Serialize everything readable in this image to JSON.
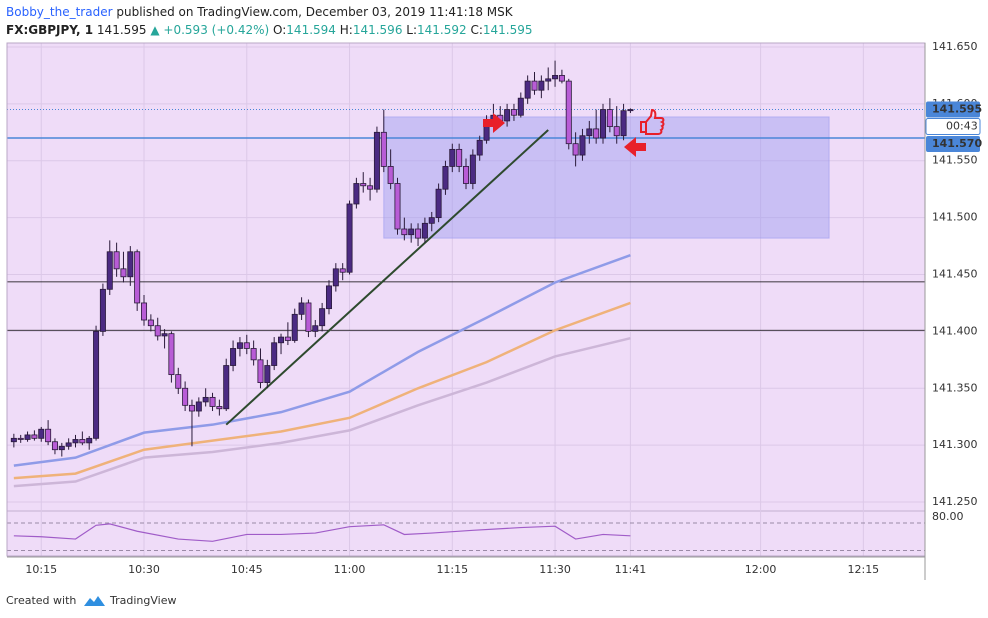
{
  "header": {
    "author": "Bobby_the_trader",
    "published": "published on TradingView.com, December 03, 2019 11:41:18 MSK",
    "symbol": "FX:GBPJPY, 1",
    "last": "141.595",
    "change": "▲ +0.593 (+0.42%)",
    "open_label": "O:",
    "open": "141.594",
    "high_label": "H:",
    "high": "141.596",
    "low_label": "L:",
    "low": "141.592",
    "close_label": "C:",
    "close": "141.595"
  },
  "footer": {
    "text": "Created with",
    "brand": "TradingView"
  },
  "chart_data": {
    "type": "candlestick",
    "xlim": [
      "10:10",
      "12:24"
    ],
    "xticks": [
      "10:15",
      "10:30",
      "10:45",
      "11:00",
      "11:15",
      "11:30",
      "11:41",
      "12:00",
      "12:15"
    ],
    "ylim": [
      141.243,
      141.6535
    ],
    "yticks": [
      {
        "value": 141.25,
        "label": "141.250"
      },
      {
        "value": 141.3,
        "label": "141.300"
      },
      {
        "value": 141.35,
        "label": "141.350"
      },
      {
        "value": 141.4,
        "label": "141.400"
      },
      {
        "value": 141.45,
        "label": "141.450"
      },
      {
        "value": 141.5,
        "label": "141.500"
      },
      {
        "value": 141.55,
        "label": "141.550"
      },
      {
        "value": 141.6,
        "label": "141.600"
      },
      {
        "value": 141.65,
        "label": "141.650"
      }
    ],
    "grid": true,
    "up_color": "#4b2a82",
    "down_color": "#b85cd6",
    "x": [
      "10:11",
      "10:12",
      "10:13",
      "10:14",
      "10:15",
      "10:16",
      "10:17",
      "10:18",
      "10:19",
      "10:20",
      "10:21",
      "10:22",
      "10:23",
      "10:24",
      "10:25",
      "10:26",
      "10:27",
      "10:28",
      "10:29",
      "10:30",
      "10:31",
      "10:32",
      "10:33",
      "10:34",
      "10:35",
      "10:36",
      "10:37",
      "10:38",
      "10:39",
      "10:40",
      "10:41",
      "10:42",
      "10:43",
      "10:44",
      "10:45",
      "10:46",
      "10:47",
      "10:48",
      "10:49",
      "10:50",
      "10:51",
      "10:52",
      "10:53",
      "10:54",
      "10:55",
      "10:56",
      "10:57",
      "10:58",
      "10:59",
      "11:00",
      "11:01",
      "11:02",
      "11:03",
      "11:04",
      "11:05",
      "11:06",
      "11:07",
      "11:08",
      "11:09",
      "11:10",
      "11:11",
      "11:12",
      "11:13",
      "11:14",
      "11:15",
      "11:16",
      "11:17",
      "11:18",
      "11:19",
      "11:20",
      "11:21",
      "11:22",
      "11:23",
      "11:24",
      "11:25",
      "11:26",
      "11:27",
      "11:28",
      "11:29",
      "11:30",
      "11:31",
      "11:32",
      "11:33",
      "11:34",
      "11:35",
      "11:36",
      "11:37",
      "11:38",
      "11:39",
      "11:40",
      "11:41"
    ],
    "open": [
      141.303,
      141.306,
      141.305,
      141.309,
      141.306,
      141.314,
      141.303,
      141.296,
      141.299,
      141.302,
      141.305,
      141.302,
      141.306,
      141.4,
      141.437,
      141.47,
      141.455,
      141.448,
      141.47,
      141.425,
      141.41,
      141.405,
      141.396,
      141.398,
      141.362,
      141.35,
      141.335,
      141.33,
      141.338,
      141.342,
      141.334,
      141.332,
      141.37,
      141.385,
      141.39,
      141.385,
      141.375,
      141.355,
      141.37,
      141.39,
      141.395,
      141.392,
      141.415,
      141.425,
      141.4,
      141.405,
      141.42,
      141.44,
      141.455,
      141.452,
      141.512,
      141.53,
      141.528,
      141.525,
      141.575,
      141.545,
      141.53,
      141.49,
      141.485,
      141.49,
      141.482,
      141.495,
      141.5,
      141.525,
      141.545,
      141.56,
      141.545,
      141.53,
      141.555,
      141.568,
      141.585,
      141.59,
      141.585,
      141.595,
      141.59,
      141.605,
      141.62,
      141.612,
      141.62,
      141.622,
      141.625,
      141.62,
      141.565,
      141.555,
      141.572,
      141.578,
      141.57,
      141.595,
      141.58,
      141.572,
      141.594
    ],
    "high": [
      141.31,
      141.309,
      141.312,
      141.313,
      141.316,
      141.322,
      141.306,
      141.302,
      141.306,
      141.309,
      141.312,
      141.308,
      141.405,
      141.442,
      141.48,
      141.478,
      141.47,
      141.475,
      141.472,
      141.432,
      141.415,
      141.412,
      141.402,
      141.4,
      141.368,
      141.356,
      141.34,
      141.342,
      141.35,
      141.346,
      141.34,
      141.376,
      141.392,
      141.395,
      141.397,
      141.392,
      141.385,
      141.375,
      141.395,
      141.398,
      141.408,
      141.42,
      141.43,
      141.428,
      141.41,
      141.425,
      141.445,
      141.46,
      141.46,
      141.515,
      141.535,
      141.54,
      141.535,
      141.58,
      141.595,
      141.56,
      141.535,
      141.5,
      141.495,
      141.495,
      141.5,
      141.505,
      141.53,
      141.55,
      141.565,
      141.565,
      141.552,
      141.56,
      141.572,
      141.59,
      141.6,
      141.598,
      141.6,
      141.6,
      141.61,
      141.625,
      141.628,
      141.625,
      141.632,
      141.638,
      141.63,
      141.622,
      141.575,
      141.578,
      141.585,
      141.595,
      141.6,
      141.605,
      141.598,
      141.6,
      141.596
    ],
    "low": [
      141.298,
      141.302,
      141.303,
      141.304,
      141.303,
      141.3,
      141.292,
      141.29,
      141.296,
      141.298,
      141.3,
      141.296,
      141.304,
      141.396,
      141.432,
      141.448,
      141.443,
      141.44,
      141.418,
      141.405,
      141.4,
      141.392,
      141.385,
      141.355,
      141.345,
      141.33,
      141.299,
      141.325,
      141.334,
      141.33,
      141.326,
      141.33,
      141.365,
      141.378,
      141.38,
      141.37,
      141.35,
      141.35,
      141.366,
      141.38,
      141.388,
      141.39,
      141.41,
      141.395,
      141.395,
      141.4,
      141.415,
      141.435,
      141.445,
      141.45,
      141.508,
      141.522,
      141.515,
      141.522,
      141.54,
      141.525,
      141.485,
      141.48,
      141.478,
      141.475,
      141.478,
      141.488,
      141.496,
      141.52,
      141.54,
      141.54,
      141.525,
      141.525,
      141.55,
      141.565,
      141.58,
      141.58,
      141.58,
      141.585,
      141.588,
      141.6,
      141.608,
      141.605,
      141.612,
      141.615,
      141.618,
      141.56,
      141.545,
      141.55,
      141.565,
      141.565,
      141.565,
      141.575,
      141.565,
      141.568,
      141.592
    ],
    "close": [
      141.306,
      141.305,
      141.309,
      141.306,
      141.314,
      141.303,
      141.296,
      141.299,
      141.302,
      141.305,
      141.302,
      141.306,
      141.4,
      141.437,
      141.47,
      141.455,
      141.448,
      141.47,
      141.425,
      141.41,
      141.405,
      141.396,
      141.398,
      141.362,
      141.35,
      141.335,
      141.33,
      141.338,
      141.342,
      141.334,
      141.332,
      141.37,
      141.385,
      141.39,
      141.385,
      141.375,
      141.355,
      141.37,
      141.39,
      141.395,
      141.392,
      141.415,
      141.425,
      141.4,
      141.405,
      141.42,
      141.44,
      141.455,
      141.452,
      141.512,
      141.53,
      141.528,
      141.525,
      141.575,
      141.545,
      141.53,
      141.49,
      141.485,
      141.49,
      141.482,
      141.495,
      141.5,
      141.525,
      141.545,
      141.56,
      141.545,
      141.53,
      141.555,
      141.568,
      141.585,
      141.59,
      141.585,
      141.595,
      141.59,
      141.605,
      141.62,
      141.612,
      141.62,
      141.622,
      141.625,
      141.62,
      141.565,
      141.555,
      141.572,
      141.578,
      141.57,
      141.595,
      141.58,
      141.572,
      141.594,
      141.595
    ],
    "moving_averages": [
      {
        "color": "#8f9be8",
        "x": [
          "10:11",
          "10:20",
          "10:30",
          "10:40",
          "10:50",
          "11:00",
          "11:10",
          "11:20",
          "11:30",
          "11:41"
        ],
        "values": [
          141.282,
          141.289,
          141.311,
          141.318,
          141.329,
          141.347,
          141.382,
          141.412,
          141.443,
          141.467
        ]
      },
      {
        "color": "#efb27a",
        "x": [
          "10:11",
          "10:20",
          "10:30",
          "10:40",
          "10:50",
          "11:00",
          "11:10",
          "11:20",
          "11:30",
          "11:41"
        ],
        "values": [
          141.271,
          141.275,
          141.296,
          141.304,
          141.312,
          141.324,
          141.35,
          141.373,
          141.401,
          141.425
        ]
      },
      {
        "color": "#cdb6d8",
        "x": [
          "10:11",
          "10:20",
          "10:30",
          "10:40",
          "10:50",
          "11:00",
          "11:10",
          "11:20",
          "11:30",
          "11:41"
        ],
        "values": [
          141.264,
          141.268,
          141.289,
          141.294,
          141.302,
          141.313,
          141.335,
          141.355,
          141.378,
          141.394
        ]
      }
    ],
    "price_lines": [
      {
        "value": 141.595,
        "label": "141.595",
        "color": "#4a86d8",
        "style": "dotted"
      },
      {
        "value": 141.57,
        "label": "141.570",
        "color": "#4a86d8",
        "style": "solid"
      },
      {
        "value": 141.4435,
        "color": "#000000",
        "style": "solid"
      },
      {
        "value": 141.401,
        "color": "#000000",
        "style": "solid"
      }
    ],
    "countdown": "00:43",
    "zone": {
      "x": [
        "11:05",
        "12:10"
      ],
      "y": [
        141.482,
        141.5885
      ],
      "color": "#9b9bf0"
    },
    "trendline": {
      "x": [
        "10:42",
        "11:29"
      ],
      "y": [
        141.318,
        141.577
      ],
      "color": "#2e4a2e"
    },
    "rsi": {
      "color": "#a05cc8",
      "ylim": [
        8,
        104
      ],
      "levels": [
        80,
        20
      ],
      "yticks": [
        {
          "value": 80,
          "label": "80.00"
        }
      ],
      "x": [
        "10:11",
        "10:15",
        "10:20",
        "10:23",
        "10:25",
        "10:29",
        "10:35",
        "10:40",
        "10:45",
        "10:50",
        "10:55",
        "11:00",
        "11:05",
        "11:08",
        "11:12",
        "11:18",
        "11:25",
        "11:30",
        "11:33",
        "11:37",
        "11:41"
      ],
      "values": [
        52,
        50,
        45,
        75,
        78,
        62,
        45,
        40,
        55,
        55,
        58,
        72,
        76,
        55,
        58,
        64,
        70,
        73,
        45,
        55,
        52
      ]
    }
  }
}
